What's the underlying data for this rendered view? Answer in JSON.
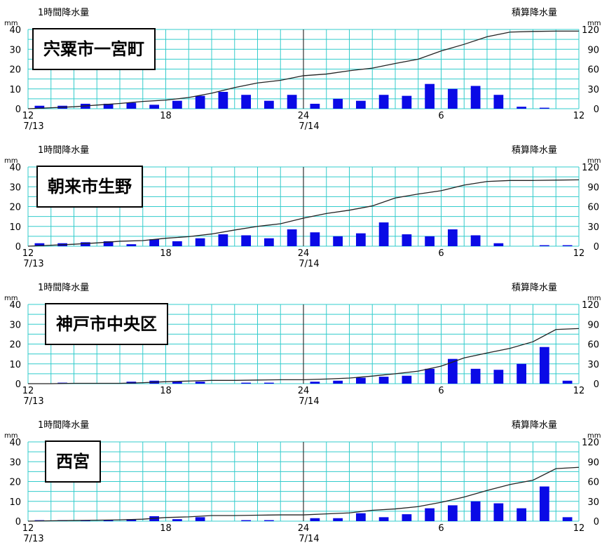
{
  "chart_data": [
    {
      "type": "bar",
      "title": "宍粟市一宮町",
      "left_axis_title": "1時間降水量",
      "right_axis_title": "積算降水量",
      "left_unit": "mm",
      "right_unit": "mm",
      "ylim": [
        0,
        40
      ],
      "y2lim": [
        0,
        120
      ],
      "yticks": [
        0,
        10,
        20,
        30,
        40
      ],
      "y2ticks": [
        0,
        30,
        60,
        90,
        120
      ],
      "xtick_labels": [
        {
          "hour": 12,
          "label": "12",
          "date": "7/13"
        },
        {
          "hour": 18,
          "label": "18",
          "date": ""
        },
        {
          "hour": 24,
          "label": "24",
          "date": "7/14"
        },
        {
          "hour": 30,
          "label": "6",
          "date": ""
        },
        {
          "hour": 36,
          "label": "12",
          "date": ""
        }
      ],
      "hours": [
        13,
        14,
        15,
        16,
        17,
        18,
        19,
        20,
        21,
        22,
        23,
        24,
        25,
        26,
        27,
        28,
        29,
        30,
        31,
        32,
        33,
        34,
        35,
        36
      ],
      "hourly_precip_mm": [
        1.5,
        1.5,
        2.5,
        2.5,
        3,
        2,
        4,
        6.5,
        8.5,
        7,
        4,
        7,
        2.5,
        5,
        4,
        7,
        6.5,
        12.5,
        10,
        11.5,
        7,
        1,
        0.5,
        0
      ],
      "cumulative_mm": [
        1.5,
        3,
        5.5,
        8,
        11,
        13,
        17,
        23.5,
        32,
        39,
        43,
        50,
        52.5,
        57.5,
        61.5,
        68.5,
        75,
        87.5,
        97.5,
        109,
        116,
        117,
        117.5,
        117.5
      ]
    },
    {
      "type": "bar",
      "title": "朝来市生野",
      "left_axis_title": "1時間降水量",
      "right_axis_title": "積算降水量",
      "left_unit": "mm",
      "right_unit": "mm",
      "ylim": [
        0,
        40
      ],
      "y2lim": [
        0,
        120
      ],
      "yticks": [
        0,
        10,
        20,
        30,
        40
      ],
      "y2ticks": [
        0,
        30,
        60,
        90,
        120
      ],
      "xtick_labels": [
        {
          "hour": 12,
          "label": "12",
          "date": "7/13"
        },
        {
          "hour": 18,
          "label": "18",
          "date": ""
        },
        {
          "hour": 24,
          "label": "24",
          "date": "7/14"
        },
        {
          "hour": 30,
          "label": "6",
          "date": ""
        },
        {
          "hour": 36,
          "label": "12",
          "date": ""
        }
      ],
      "hours": [
        13,
        14,
        15,
        16,
        17,
        18,
        19,
        20,
        21,
        22,
        23,
        24,
        25,
        26,
        27,
        28,
        29,
        30,
        31,
        32,
        33,
        34,
        35,
        36
      ],
      "hourly_precip_mm": [
        1.5,
        1.5,
        2,
        2.5,
        1,
        3.5,
        2.5,
        4,
        6,
        5.5,
        4,
        8.5,
        7,
        5,
        6.5,
        12,
        6,
        5,
        8.5,
        5.5,
        1.5,
        0,
        0.5,
        0.5
      ],
      "cumulative_mm": [
        1.5,
        3,
        5,
        7.5,
        8.5,
        12,
        14.5,
        18.5,
        24.5,
        30,
        34,
        42.5,
        49.5,
        54.5,
        61,
        73,
        79,
        84,
        92.5,
        98,
        99.5,
        99.5,
        100,
        100.5
      ]
    },
    {
      "type": "bar",
      "title": "神戸市中央区",
      "left_axis_title": "1時間降水量",
      "right_axis_title": "積算降水量",
      "left_unit": "mm",
      "right_unit": "mm",
      "ylim": [
        0,
        40
      ],
      "y2lim": [
        0,
        120
      ],
      "yticks": [
        0,
        10,
        20,
        30,
        40
      ],
      "y2ticks": [
        0,
        30,
        60,
        90,
        120
      ],
      "xtick_labels": [
        {
          "hour": 12,
          "label": "12",
          "date": "7/13"
        },
        {
          "hour": 18,
          "label": "18",
          "date": ""
        },
        {
          "hour": 24,
          "label": "24",
          "date": "7/14"
        },
        {
          "hour": 30,
          "label": "6",
          "date": ""
        },
        {
          "hour": 36,
          "label": "12",
          "date": ""
        }
      ],
      "hours": [
        13,
        14,
        15,
        16,
        17,
        18,
        19,
        20,
        21,
        22,
        23,
        24,
        25,
        26,
        27,
        28,
        29,
        30,
        31,
        32,
        33,
        34,
        35,
        36
      ],
      "hourly_precip_mm": [
        0,
        0.5,
        0,
        0,
        1,
        1.5,
        1,
        1,
        0,
        0.5,
        0.5,
        0,
        1,
        1.5,
        3,
        3.5,
        4,
        7.5,
        12.5,
        7.5,
        7,
        10,
        18.5,
        1.5
      ],
      "cumulative_mm": [
        0,
        0.5,
        0.5,
        0.5,
        1.5,
        3,
        4,
        5,
        5,
        5.5,
        6,
        6,
        7,
        8.5,
        11.5,
        15,
        19,
        26.5,
        39,
        46.5,
        53.5,
        63.5,
        82,
        83.5
      ]
    },
    {
      "type": "bar",
      "title": "西宮",
      "left_axis_title": "1時間降水量",
      "right_axis_title": "積算降水量",
      "left_unit": "mm",
      "right_unit": "mm",
      "ylim": [
        0,
        40
      ],
      "y2lim": [
        0,
        120
      ],
      "yticks": [
        0,
        10,
        20,
        30,
        40
      ],
      "y2ticks": [
        0,
        30,
        60,
        90,
        120
      ],
      "xtick_labels": [
        {
          "hour": 12,
          "label": "12",
          "date": "7/13"
        },
        {
          "hour": 18,
          "label": "18",
          "date": ""
        },
        {
          "hour": 24,
          "label": "24",
          "date": "7/14"
        },
        {
          "hour": 30,
          "label": "6",
          "date": ""
        },
        {
          "hour": 36,
          "label": "12",
          "date": ""
        }
      ],
      "hours": [
        13,
        14,
        15,
        16,
        17,
        18,
        19,
        20,
        21,
        22,
        23,
        24,
        25,
        26,
        27,
        28,
        29,
        30,
        31,
        32,
        33,
        34,
        35,
        36
      ],
      "hourly_precip_mm": [
        0.5,
        0.5,
        0.5,
        0.5,
        1,
        2.5,
        1,
        2,
        0,
        0.5,
        0.5,
        0,
        1.5,
        1.5,
        4,
        2,
        3.5,
        6.5,
        8,
        10,
        9,
        6.5,
        17.5,
        2
      ],
      "cumulative_mm": [
        0.5,
        1,
        1.5,
        2,
        3,
        5.5,
        6.5,
        8.5,
        8.5,
        9,
        9.5,
        9.5,
        11,
        12.5,
        16.5,
        18.5,
        22,
        28.5,
        36.5,
        46.5,
        55.5,
        62,
        79.5,
        81.5
      ]
    }
  ],
  "colors": {
    "grid": "#33cccc",
    "bar": "#0a0ae6",
    "line": "#222222",
    "midnight_line": "#333333"
  }
}
